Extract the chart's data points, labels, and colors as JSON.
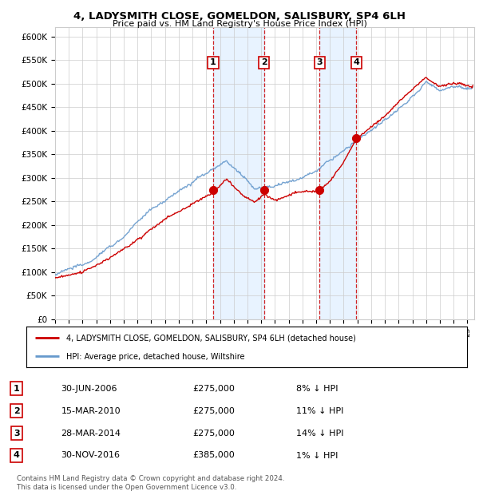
{
  "title": "4, LADYSMITH CLOSE, GOMELDON, SALISBURY, SP4 6LH",
  "subtitle": "Price paid vs. HM Land Registry's House Price Index (HPI)",
  "ylim": [
    0,
    620000
  ],
  "yticks": [
    0,
    50000,
    100000,
    150000,
    200000,
    250000,
    300000,
    350000,
    400000,
    450000,
    500000,
    550000,
    600000
  ],
  "ytick_labels": [
    "£0",
    "£50K",
    "£100K",
    "£150K",
    "£200K",
    "£250K",
    "£300K",
    "£350K",
    "£400K",
    "£450K",
    "£500K",
    "£550K",
    "£600K"
  ],
  "xlim_start": 1995.0,
  "xlim_end": 2025.5,
  "sales": [
    {
      "num": 1,
      "date": "30-JUN-2006",
      "price": 275000,
      "pct": "8%",
      "x": 2006.5
    },
    {
      "num": 2,
      "date": "15-MAR-2010",
      "price": 275000,
      "pct": "11%",
      "x": 2010.21
    },
    {
      "num": 3,
      "date": "28-MAR-2014",
      "price": 275000,
      "pct": "14%",
      "x": 2014.24
    },
    {
      "num": 4,
      "date": "30-NOV-2016",
      "price": 385000,
      "pct": "1%",
      "x": 2016.92
    }
  ],
  "hpi_line_color": "#6699cc",
  "price_line_color": "#cc0000",
  "sale_dot_color": "#cc0000",
  "vline_color": "#cc0000",
  "shade_color": "#ddeeff",
  "legend_line1": "4, LADYSMITH CLOSE, GOMELDON, SALISBURY, SP4 6LH (detached house)",
  "legend_line2": "HPI: Average price, detached house, Wiltshire",
  "footer": "Contains HM Land Registry data © Crown copyright and database right 2024.\nThis data is licensed under the Open Government Licence v3.0.",
  "background_color": "#ffffff",
  "grid_color": "#cccccc"
}
